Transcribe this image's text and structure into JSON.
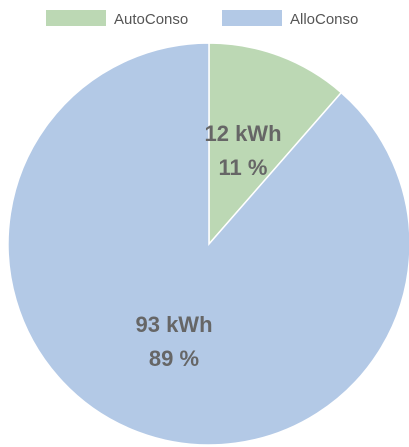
{
  "chart_data": {
    "type": "pie",
    "title": "",
    "legend_position": "top",
    "start_angle_deg": 0,
    "direction": "clockwise",
    "series": [
      {
        "name": "AutoConso",
        "value": 12,
        "value_label": "12 kWh",
        "percent": 11,
        "percent_label": "11 %",
        "color": "#bcd8b4"
      },
      {
        "name": "AlloConso",
        "value": 93,
        "value_label": "93 kWh",
        "percent": 89,
        "percent_label": "89 %",
        "color": "#b3c9e6"
      }
    ]
  }
}
